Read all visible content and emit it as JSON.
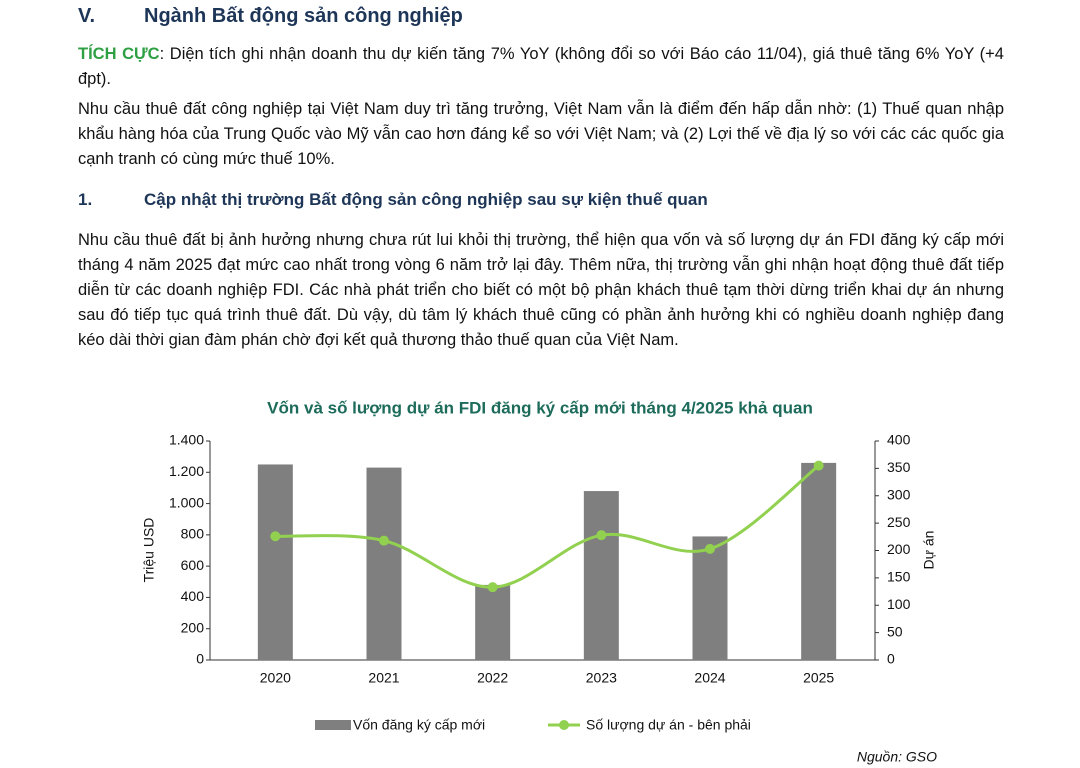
{
  "section": {
    "number": "V.",
    "title": "Ngành Bất động sản công nghiệp"
  },
  "positive": {
    "label": "TÍCH CỰC",
    "text": ": Diện tích ghi nhận doanh thu dự kiến tăng 7% YoY (không đổi so với Báo cáo 11/04), giá thuê tăng 6% YoY (+4 đpt)."
  },
  "paragraph_1": "Nhu cầu thuê đất công nghiệp tại Việt Nam duy trì tăng trưởng, Việt Nam vẫn là điểm đến hấp dẫn nhờ: (1) Thuế quan nhập khẩu hàng hóa của Trung Quốc vào Mỹ vẫn cao hơn đáng kể so với Việt Nam; và (2) Lợi thế về địa lý so với các các quốc gia cạnh tranh có cùng mức thuế 10%.",
  "subsection": {
    "number": "1.",
    "title": "Cập nhật thị trường Bất động sản công nghiệp sau sự kiện thuế quan"
  },
  "paragraph_2": "Nhu cầu thuê đất bị ảnh hưởng nhưng chưa rút lui khỏi thị trường, thể hiện qua vốn và số lượng dự án FDI đăng ký cấp mới tháng 4 năm 2025 đạt mức cao nhất trong vòng 6 năm trở lại đây. Thêm nữa, thị trường vẫn ghi nhận hoạt động thuê đất tiếp diễn từ các doanh nghiệp FDI. Các nhà phát triển cho biết có một bộ phận khách thuê tạm thời dừng triển khai dự án nhưng sau đó tiếp tục quá trình thuê đất. Dù vậy, dù tâm lý khách thuê cũng có phần ảnh hưởng khi có nghiều doanh nghiệp đang kéo dài thời gian đàm phán chờ đợi kết quả thương thảo thuế quan của Việt Nam.",
  "chart_data": {
    "type": "bar_line",
    "title": "Vốn và số lượng dự án FDI đăng ký cấp mới tháng 4/2025 khả quan",
    "ylabel": "Triệu USD",
    "y2label": "Dự án",
    "categories": [
      "2020",
      "2021",
      "2022",
      "2023",
      "2024",
      "2025"
    ],
    "series": [
      {
        "name": "Vốn đăng ký cấp mới",
        "type": "bar",
        "color": "#7f7f7f",
        "values": [
          1250,
          1230,
          480,
          1080,
          790,
          1260
        ]
      },
      {
        "name": "Số lượng dự án - bên phải",
        "type": "line",
        "color": "#92d050",
        "axis": "y2",
        "values": [
          226,
          218,
          133,
          228,
          203,
          355
        ]
      }
    ],
    "ylim": [
      0,
      1400
    ],
    "yticks": [
      0,
      200,
      400,
      600,
      800,
      {
        "value": 1000,
        "label": "1.000"
      },
      {
        "value": 1200,
        "label": "1.200"
      },
      {
        "value": 1400,
        "label": "1.400"
      }
    ],
    "y2lim": [
      0,
      400
    ],
    "y2ticks": [
      0,
      50,
      100,
      150,
      200,
      250,
      300,
      350,
      400
    ],
    "legend": "bottom",
    "grid": false
  },
  "source": "Nguồn: GSO"
}
